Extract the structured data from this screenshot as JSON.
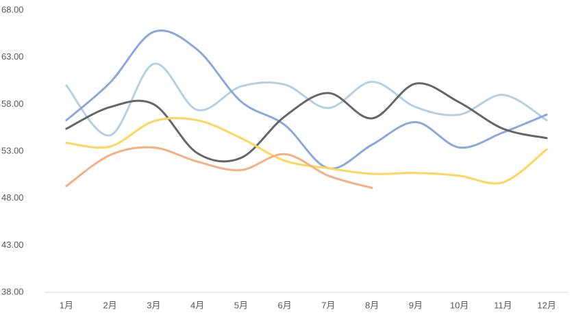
{
  "chart_data": {
    "type": "line",
    "categories": [
      "1月",
      "2月",
      "3月",
      "4月",
      "5月",
      "6月",
      "7月",
      "8月",
      "9月",
      "10月",
      "11月",
      "12月"
    ],
    "series": [
      {
        "color": "#b4d0e4",
        "values": [
          60.0,
          54.7,
          62.3,
          57.4,
          59.9,
          60.1,
          57.6,
          60.4,
          57.7,
          56.9,
          59.0,
          56.3
        ]
      },
      {
        "color": "#8ba7de",
        "values": [
          56.3,
          60.3,
          65.7,
          63.8,
          58.3,
          55.8,
          51.2,
          53.7,
          56.1,
          53.4,
          55.0,
          56.9
        ]
      },
      {
        "color": "#666666",
        "values": [
          55.4,
          57.7,
          58.0,
          52.8,
          52.3,
          56.7,
          59.2,
          56.5,
          60.2,
          58.2,
          55.4,
          54.4
        ]
      },
      {
        "color": "#ffd659",
        "values": [
          53.9,
          53.5,
          56.2,
          56.3,
          54.4,
          52.0,
          51.2,
          50.6,
          50.7,
          50.4,
          49.7,
          53.2
        ]
      },
      {
        "color": "#f4b083",
        "values": [
          49.3,
          52.6,
          53.4,
          51.9,
          51.0,
          52.7,
          50.4,
          49.1,
          null,
          null,
          null,
          null
        ]
      }
    ],
    "ylim": [
      38,
      68
    ],
    "yticks": [
      {
        "value": 38,
        "label": "38.00"
      },
      {
        "value": 43,
        "label": "43.00"
      },
      {
        "value": 48,
        "label": "48.00"
      },
      {
        "value": 53,
        "label": "53.00"
      },
      {
        "value": 58,
        "label": "58.00"
      },
      {
        "value": 63,
        "label": "63.00"
      },
      {
        "value": 68,
        "label": "68.00"
      }
    ],
    "grid": false
  }
}
